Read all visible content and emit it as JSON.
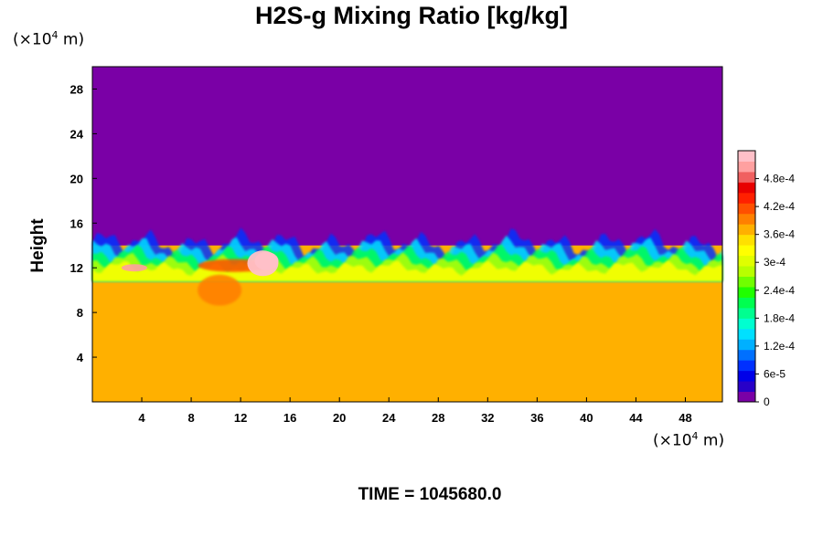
{
  "chart_data": {
    "type": "heatmap",
    "title": "H2S-g Mixing Ratio [kg/kg]",
    "ylabel": "Height",
    "xlabel": "",
    "x_unit_prefix": "(×10",
    "x_unit_exp": "4",
    "x_unit_suffix": " m)",
    "y_unit_prefix": "(×10",
    "y_unit_exp": "4",
    "y_unit_suffix": " m)",
    "xlim": [
      0,
      51
    ],
    "ylim": [
      0,
      30
    ],
    "x_ticks": [
      "4",
      "8",
      "12",
      "16",
      "20",
      "24",
      "28",
      "32",
      "36",
      "40",
      "44",
      "48"
    ],
    "x_tick_values": [
      4,
      8,
      12,
      16,
      20,
      24,
      28,
      32,
      36,
      40,
      44,
      48
    ],
    "y_ticks": [
      "4",
      "8",
      "12",
      "16",
      "20",
      "24",
      "28"
    ],
    "y_tick_values": [
      4,
      8,
      12,
      16,
      20,
      24,
      28
    ],
    "colorbar": {
      "range": [
        0,
        0.00054
      ],
      "tick_labels": [
        "0",
        "6e-5",
        "1.2e-4",
        "1.8e-4",
        "2.4e-4",
        "3e-4",
        "3.6e-4",
        "4.2e-4",
        "4.8e-4"
      ],
      "tick_values": [
        0,
        6e-05,
        0.00012,
        0.00018,
        0.00024,
        0.0003,
        0.00036,
        0.00042,
        0.00048
      ],
      "colors": [
        "#7a00a6",
        "#2800c8",
        "#0000e8",
        "#0030ff",
        "#0070ff",
        "#00b0ff",
        "#00e0ff",
        "#00ffd0",
        "#00ff90",
        "#00ff50",
        "#20ff00",
        "#70ff00",
        "#b8ff00",
        "#e0ff00",
        "#ffff00",
        "#ffe000",
        "#ffb000",
        "#ff8000",
        "#ff5000",
        "#ff2000",
        "#e80000",
        "#f06060",
        "#ffa0a0",
        "#ffc0c8"
      ]
    },
    "field": {
      "upper_value": 0,
      "lower_value": 0.00036,
      "interface_height": 14
    },
    "time_label": "TIME = 1045680.0"
  }
}
